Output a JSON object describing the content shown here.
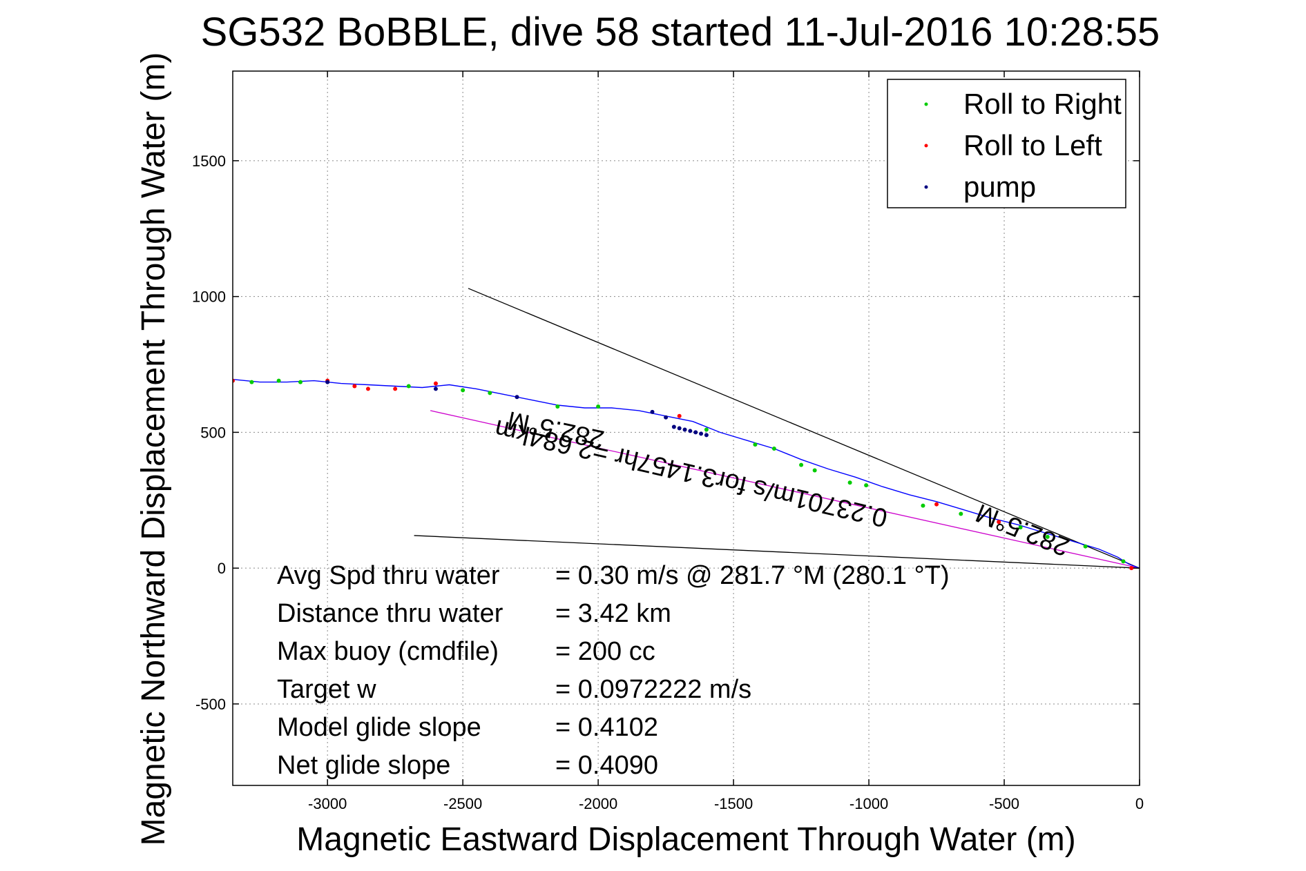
{
  "chart_data": {
    "type": "scatter",
    "title": "SG532 BoBBLE, dive 58 started 11-Jul-2016 10:28:55",
    "xlabel": "Magnetic Eastward Displacement Through Water (m)",
    "ylabel": "Magnetic Northward Displacement Through Water (m)",
    "xlim": [
      -3350,
      0
    ],
    "ylim": [
      -800,
      1830
    ],
    "xticks": [
      -3000,
      -2500,
      -2000,
      -1500,
      -1000,
      -500,
      0
    ],
    "yticks": [
      -500,
      0,
      500,
      1000,
      1500
    ],
    "grid": true,
    "legend_position": "top-right",
    "legend": [
      {
        "label": "Roll to Right",
        "color": "#00cc00"
      },
      {
        "label": "Roll to Left",
        "color": "#ff0000"
      },
      {
        "label": "pump",
        "color": "#000080"
      }
    ],
    "track": {
      "color": "#0000ff",
      "x": [
        0,
        -40,
        -80,
        -150,
        -250,
        -350,
        -450,
        -550,
        -650,
        -750,
        -850,
        -950,
        -1050,
        -1150,
        -1250,
        -1350,
        -1450,
        -1550,
        -1650,
        -1750,
        -1850,
        -1950,
        -2050,
        -2150,
        -2250,
        -2350,
        -2450,
        -2550,
        -2650,
        -2750,
        -2850,
        -2950,
        -3050,
        -3150,
        -3250,
        -3350
      ],
      "y": [
        0,
        15,
        40,
        70,
        100,
        130,
        160,
        185,
        215,
        245,
        270,
        300,
        335,
        365,
        400,
        440,
        470,
        500,
        540,
        560,
        580,
        590,
        590,
        600,
        620,
        640,
        660,
        675,
        665,
        670,
        675,
        680,
        690,
        685,
        685,
        695
      ]
    },
    "roll_right_points": {
      "x": [
        -60,
        -200,
        -340,
        -440,
        -660,
        -800,
        -1010,
        -1070,
        -1200,
        -1250,
        -1350,
        -1420,
        -1600,
        -2000,
        -2150,
        -2400,
        -2500,
        -2700,
        -3100,
        -3180,
        -3280
      ],
      "y": [
        25,
        80,
        115,
        150,
        200,
        230,
        305,
        315,
        360,
        380,
        440,
        455,
        510,
        595,
        595,
        645,
        655,
        670,
        685,
        690,
        685
      ]
    },
    "roll_left_points": {
      "x": [
        -30,
        -520,
        -750,
        -1700,
        -2600,
        -2750,
        -2850,
        -2900,
        -3000,
        -3350
      ],
      "y": [
        0,
        170,
        235,
        560,
        680,
        660,
        660,
        670,
        690,
        690
      ]
    },
    "pump_points": {
      "x": [
        -1600,
        -1620,
        -1640,
        -1660,
        -1680,
        -1700,
        -1720,
        -1750,
        -1800,
        -2300,
        -2600,
        -3000
      ],
      "y": [
        490,
        495,
        500,
        505,
        510,
        515,
        520,
        555,
        575,
        630,
        660,
        685
      ]
    },
    "reference_lines": [
      {
        "color": "#000000",
        "x": [
          0,
          -2480
        ],
        "y": [
          0,
          1030
        ]
      },
      {
        "color": "#000000",
        "x": [
          0,
          -2680
        ],
        "y": [
          0,
          120
        ]
      },
      {
        "color": "#cc00cc",
        "x": [
          0,
          -2620
        ],
        "y": [
          0,
          580
        ]
      }
    ],
    "annotations": [
      {
        "text": "282.5°M",
        "x": -2150,
        "y": 540
      },
      {
        "text": "0.23701m/s for3.1457hr =2.684km",
        "x": -1650,
        "y": 380
      },
      {
        "text": "282.5°M",
        "x": -420,
        "y": 170
      }
    ],
    "stats": [
      {
        "label": "Avg Spd thru water",
        "value": "=  0.30 m/s @ 281.7 °M (280.1 °T)"
      },
      {
        "label": "Distance thru water",
        "value": "=  3.42 km"
      },
      {
        "label": "Max buoy (cmdfile)",
        "value": "= 200 cc"
      },
      {
        "label": "Target w",
        "value": "= 0.0972222 m/s"
      },
      {
        "label": "Model glide slope",
        "value": "= 0.4102"
      },
      {
        "label": "Net glide slope",
        "value": "= 0.4090"
      }
    ]
  }
}
